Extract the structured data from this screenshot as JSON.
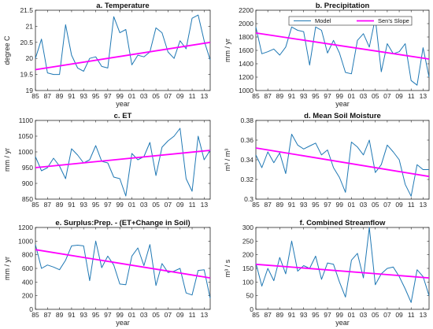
{
  "colors": {
    "model": "#1f78b4",
    "trend": "#ff00ff",
    "axis": "#262626"
  },
  "chart_data": [
    {
      "type": "line",
      "title": "a. Temperature",
      "xlabel": "year",
      "ylabel": "degree C",
      "xlim": [
        1985,
        2014
      ],
      "ylim": [
        19,
        21.5
      ],
      "xticks": [
        1985,
        1987,
        1989,
        1991,
        1993,
        1995,
        1997,
        1999,
        2001,
        2003,
        2005,
        2007,
        2009,
        2011,
        2013
      ],
      "xtick_labels": [
        "85",
        "87",
        "89",
        "91",
        "93",
        "95",
        "97",
        "99",
        "01",
        "03",
        "05",
        "07",
        "09",
        "11",
        "13"
      ],
      "yticks": [
        19,
        19.5,
        20,
        20.5,
        21,
        21.5
      ],
      "ytick_labels": [
        "19",
        "19.5",
        "20",
        "20.5",
        "21",
        "21.5"
      ],
      "series": [
        {
          "name": "Model",
          "x": [
            1985,
            1986,
            1987,
            1988,
            1989,
            1990,
            1991,
            1992,
            1993,
            1994,
            1995,
            1996,
            1997,
            1998,
            1999,
            2000,
            2001,
            2002,
            2003,
            2004,
            2005,
            2006,
            2007,
            2008,
            2009,
            2010,
            2011,
            2012,
            2013,
            2014
          ],
          "values": [
            20.0,
            20.6,
            19.55,
            19.5,
            19.5,
            21.05,
            20.1,
            19.7,
            19.6,
            20.0,
            20.05,
            19.75,
            19.7,
            21.3,
            20.8,
            20.9,
            19.8,
            20.1,
            20.05,
            20.2,
            20.95,
            20.8,
            20.2,
            20.0,
            20.55,
            20.3,
            21.25,
            21.35,
            20.55,
            19.95
          ]
        },
        {
          "name": "Sen's Slope",
          "x": [
            1985,
            2014
          ],
          "values": [
            19.65,
            20.5
          ]
        }
      ]
    },
    {
      "type": "line",
      "title": "b. Precipitation",
      "xlabel": "year",
      "ylabel": "mm / yr",
      "xlim": [
        1985,
        2014
      ],
      "ylim": [
        1000,
        2200
      ],
      "xticks": [
        1985,
        1987,
        1989,
        1991,
        1993,
        1995,
        1997,
        1999,
        2001,
        2003,
        2005,
        2007,
        2009,
        2011,
        2013
      ],
      "xtick_labels": [
        "85",
        "87",
        "89",
        "91",
        "93",
        "95",
        "97",
        "99",
        "01",
        "03",
        "05",
        "07",
        "09",
        "11",
        "13"
      ],
      "yticks": [
        1000,
        1200,
        1400,
        1600,
        1800,
        2000,
        2200
      ],
      "ytick_labels": [
        "1000",
        "1200",
        "1400",
        "1600",
        "1800",
        "2000",
        "2200"
      ],
      "legend": {
        "placement": "top-right",
        "entries": [
          "Model",
          "Sen's Slope"
        ]
      },
      "series": [
        {
          "name": "Model",
          "x": [
            1985,
            1986,
            1987,
            1988,
            1989,
            1990,
            1991,
            1992,
            1993,
            1994,
            1995,
            1996,
            1997,
            1998,
            1999,
            2000,
            2001,
            2002,
            2003,
            2004,
            2005,
            2006,
            2007,
            2008,
            2009,
            2010,
            2011,
            2012,
            2013,
            2014
          ],
          "values": [
            1950,
            1550,
            1580,
            1620,
            1530,
            1650,
            1950,
            1900,
            1880,
            1380,
            1950,
            1900,
            1560,
            1750,
            1560,
            1270,
            1250,
            1750,
            1850,
            1650,
            2080,
            1280,
            1700,
            1550,
            1580,
            1700,
            1150,
            1080,
            1640,
            1200
          ]
        },
        {
          "name": "Sen's Slope",
          "x": [
            1985,
            2014
          ],
          "values": [
            1860,
            1470
          ]
        }
      ]
    },
    {
      "type": "line",
      "title": "c. ET",
      "xlabel": "",
      "ylabel": "mm / yr",
      "xlim": [
        1985,
        2014
      ],
      "ylim": [
        850,
        1100
      ],
      "xticks": [
        1985,
        1987,
        1989,
        1991,
        1993,
        1995,
        1997,
        1999,
        2001,
        2003,
        2005,
        2007,
        2009,
        2011,
        2013
      ],
      "xtick_labels": [
        "85",
        "87",
        "89",
        "91",
        "93",
        "95",
        "97",
        "99",
        "01",
        "03",
        "05",
        "07",
        "09",
        "11",
        "13"
      ],
      "yticks": [
        850,
        900,
        950,
        1000,
        1050,
        1100
      ],
      "ytick_labels": [
        "850",
        "900",
        "950",
        "1000",
        "1050",
        "1100"
      ],
      "series": [
        {
          "name": "Model",
          "x": [
            1985,
            1986,
            1987,
            1988,
            1989,
            1990,
            1991,
            1992,
            1993,
            1994,
            1995,
            1996,
            1997,
            1998,
            1999,
            2000,
            2001,
            2002,
            2003,
            2004,
            2005,
            2006,
            2007,
            2008,
            2009,
            2010,
            2011,
            2012,
            2013,
            2014
          ],
          "values": [
            985,
            940,
            950,
            980,
            955,
            915,
            1010,
            990,
            965,
            975,
            1020,
            970,
            965,
            920,
            915,
            860,
            995,
            975,
            985,
            1030,
            925,
            1015,
            1035,
            1050,
            1075,
            915,
            875,
            1050,
            975,
            1005
          ]
        },
        {
          "name": "Sen's Slope",
          "x": [
            1985,
            2014
          ],
          "values": [
            950,
            1005
          ]
        }
      ]
    },
    {
      "type": "line",
      "title": "d. Mean Soil Moisture",
      "xlabel": "",
      "ylabel": "m³ / m³",
      "xlim": [
        1985,
        2014
      ],
      "ylim": [
        0.3,
        0.38
      ],
      "xticks": [
        1985,
        1987,
        1989,
        1991,
        1993,
        1995,
        1997,
        1999,
        2001,
        2003,
        2005,
        2007,
        2009,
        2011,
        2013
      ],
      "xtick_labels": [
        "85",
        "87",
        "89",
        "91",
        "93",
        "95",
        "97",
        "99",
        "01",
        "03",
        "05",
        "07",
        "09",
        "11",
        "13"
      ],
      "yticks": [
        0.3,
        0.32,
        0.34,
        0.36,
        0.38
      ],
      "ytick_labels": [
        "0.3",
        "0.32",
        "0.34",
        "0.36",
        "0.38"
      ],
      "series": [
        {
          "name": "Model",
          "x": [
            1985,
            1986,
            1987,
            1988,
            1989,
            1990,
            1991,
            1992,
            1993,
            1994,
            1995,
            1996,
            1997,
            1998,
            1999,
            2000,
            2001,
            2002,
            2003,
            2004,
            2005,
            2006,
            2007,
            2008,
            2009,
            2010,
            2011,
            2012,
            2013,
            2014
          ],
          "values": [
            0.345,
            0.332,
            0.348,
            0.337,
            0.347,
            0.326,
            0.366,
            0.355,
            0.351,
            0.354,
            0.357,
            0.345,
            0.35,
            0.332,
            0.322,
            0.307,
            0.358,
            0.353,
            0.345,
            0.36,
            0.327,
            0.335,
            0.355,
            0.348,
            0.34,
            0.315,
            0.303,
            0.335,
            0.33,
            0.33
          ]
        },
        {
          "name": "Sen's Slope",
          "x": [
            1985,
            2014
          ],
          "values": [
            0.352,
            0.323
          ]
        }
      ]
    },
    {
      "type": "line",
      "title": "e. Surplus:Prep. - (ET+Change in Soil)",
      "xlabel": "year",
      "ylabel": "mm / yr",
      "xlim": [
        1985,
        2014
      ],
      "ylim": [
        0,
        1200
      ],
      "xticks": [
        1985,
        1987,
        1989,
        1991,
        1993,
        1995,
        1997,
        1999,
        2001,
        2003,
        2005,
        2007,
        2009,
        2011,
        2013
      ],
      "xtick_labels": [
        "85",
        "87",
        "89",
        "91",
        "93",
        "95",
        "97",
        "99",
        "01",
        "03",
        "05",
        "07",
        "09",
        "11",
        "13"
      ],
      "yticks": [
        0,
        200,
        400,
        600,
        800,
        1000,
        1200
      ],
      "ytick_labels": [
        "0",
        "200",
        "400",
        "600",
        "800",
        "1000",
        "1200"
      ],
      "series": [
        {
          "name": "Model",
          "x": [
            1985,
            1986,
            1987,
            1988,
            1989,
            1990,
            1991,
            1992,
            1993,
            1994,
            1995,
            1996,
            1997,
            1998,
            1999,
            2000,
            2001,
            2002,
            2003,
            2004,
            2005,
            2006,
            2007,
            2008,
            2009,
            2010,
            2011,
            2012,
            2013,
            2014
          ],
          "values": [
            950,
            600,
            650,
            620,
            580,
            720,
            930,
            940,
            930,
            420,
            1000,
            610,
            780,
            650,
            370,
            360,
            780,
            900,
            640,
            950,
            350,
            670,
            540,
            560,
            600,
            240,
            210,
            570,
            580,
            160
          ]
        },
        {
          "name": "Sen's Slope",
          "x": [
            1985,
            2014
          ],
          "values": [
            875,
            460
          ]
        }
      ]
    },
    {
      "type": "line",
      "title": "f. Combined Streamflow",
      "xlabel": "year",
      "ylabel": "m³ / s",
      "xlim": [
        1985,
        2014
      ],
      "ylim": [
        0,
        300
      ],
      "xticks": [
        1985,
        1987,
        1989,
        1991,
        1993,
        1995,
        1997,
        1999,
        2001,
        2003,
        2005,
        2007,
        2009,
        2011,
        2013
      ],
      "xtick_labels": [
        "85",
        "87",
        "89",
        "91",
        "93",
        "95",
        "97",
        "99",
        "01",
        "03",
        "05",
        "07",
        "09",
        "11",
        "13"
      ],
      "yticks": [
        0,
        50,
        100,
        150,
        200,
        250,
        300
      ],
      "ytick_labels": [
        "0",
        "50",
        "100",
        "150",
        "200",
        "250",
        "300"
      ],
      "series": [
        {
          "name": "Model",
          "x": [
            1985,
            1986,
            1987,
            1988,
            1989,
            1990,
            1991,
            1992,
            1993,
            1994,
            1995,
            1996,
            1997,
            1998,
            1999,
            2000,
            2001,
            2002,
            2003,
            2004,
            2005,
            2006,
            2007,
            2008,
            2009,
            2010,
            2011,
            2012,
            2013,
            2014
          ],
          "values": [
            170,
            85,
            150,
            105,
            190,
            130,
            250,
            140,
            160,
            150,
            195,
            110,
            170,
            165,
            100,
            45,
            180,
            205,
            115,
            300,
            90,
            130,
            150,
            155,
            120,
            75,
            25,
            145,
            120,
            50
          ]
        },
        {
          "name": "Sen's Slope",
          "x": [
            1985,
            2014
          ],
          "values": [
            165,
            115
          ]
        }
      ]
    }
  ]
}
